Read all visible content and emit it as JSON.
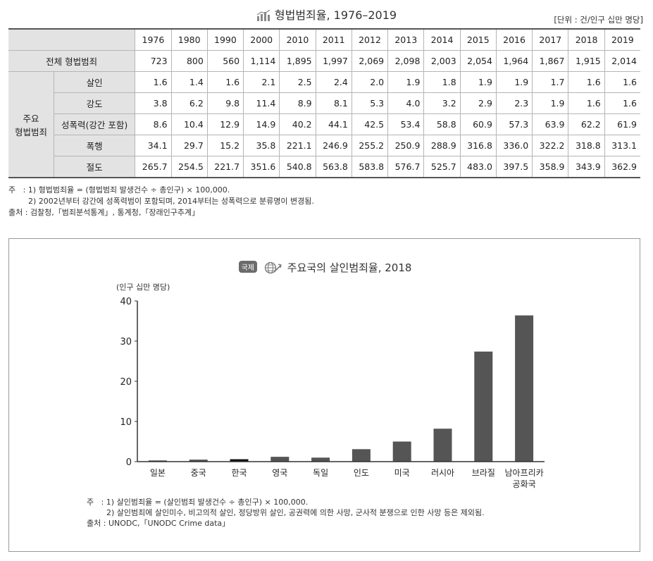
{
  "table_title": "형법범죄율, 1976–2019",
  "unit": "[단위 : 건/인구 십만 명당]",
  "years": [
    "1976",
    "1980",
    "1990",
    "2000",
    "2010",
    "2011",
    "2012",
    "2013",
    "2014",
    "2015",
    "2016",
    "2017",
    "2018",
    "2019"
  ],
  "total_row": {
    "label": "전체 형법범죄",
    "values": [
      "723",
      "800",
      "560",
      "1,114",
      "1,895",
      "1,997",
      "2,069",
      "2,098",
      "2,003",
      "2,054",
      "1,964",
      "1,867",
      "1,915",
      "2,014"
    ]
  },
  "group_label_1": "주요",
  "group_label_2": "형법범죄",
  "crime_rows": [
    {
      "label": "살인",
      "values": [
        "1.6",
        "1.4",
        "1.6",
        "2.1",
        "2.5",
        "2.4",
        "2.0",
        "1.9",
        "1.8",
        "1.9",
        "1.9",
        "1.7",
        "1.6",
        "1.6"
      ]
    },
    {
      "label": "강도",
      "values": [
        "3.8",
        "6.2",
        "9.8",
        "11.4",
        "8.9",
        "8.1",
        "5.3",
        "4.0",
        "3.2",
        "2.9",
        "2.3",
        "1.9",
        "1.6",
        "1.6"
      ]
    },
    {
      "label": "성폭력(강간 포함)",
      "values": [
        "8.6",
        "10.4",
        "12.9",
        "14.9",
        "40.2",
        "44.1",
        "42.5",
        "53.4",
        "58.8",
        "60.9",
        "57.3",
        "63.9",
        "62.2",
        "61.9"
      ]
    },
    {
      "label": "폭행",
      "values": [
        "34.1",
        "29.7",
        "15.2",
        "35.8",
        "221.1",
        "246.9",
        "255.2",
        "250.9",
        "288.9",
        "316.8",
        "336.0",
        "322.2",
        "318.8",
        "313.1"
      ]
    },
    {
      "label": "절도",
      "values": [
        "265.7",
        "254.5",
        "221.7",
        "351.6",
        "540.8",
        "563.8",
        "583.8",
        "576.7",
        "525.7",
        "483.0",
        "397.5",
        "358.9",
        "343.9",
        "362.9"
      ]
    }
  ],
  "table_notes": [
    "주   : 1) 형법범죄율 = (형법범죄 발생건수 ÷ 총인구) × 100,000.",
    "        2) 2002년부터 강간에 성폭력범이 포함되며, 2014부터는 성폭력으로 분류명이 변경됨.",
    "출처 : 검찰청,「범죄분석통계」, 통계청,「장래인구추계」"
  ],
  "chart_badge": "국제",
  "chart_data": {
    "type": "bar",
    "title": "주요국의 살인범죄율, 2018",
    "ylabel": "(인구 십만 명당)",
    "xlabel": "",
    "categories": [
      "일본",
      "중국",
      "한국",
      "영국",
      "독일",
      "인도",
      "미국",
      "러시아",
      "브라질",
      "남아프리카 공화국"
    ],
    "values": [
      0.3,
      0.5,
      0.6,
      1.2,
      1.0,
      3.1,
      5.0,
      8.2,
      27.4,
      36.4
    ],
    "highlight_index": 2,
    "ylim": [
      0,
      40
    ],
    "yticks": [
      0,
      10,
      20,
      30,
      40
    ],
    "grid": false,
    "legend": "none",
    "colors": {
      "bar": "#555555",
      "highlight": "#111111",
      "axis": "#333333"
    }
  },
  "chart_notes": [
    "주   : 1) 살인범죄율 = (살인범죄 발생건수 ÷ 총인구) × 100,000.",
    "        2) 살인범죄에 살인미수, 비고의적 살인, 정당방위 살인, 공권력에 의한 사망, 군사적 분쟁으로 인한 사망 등은 제외됨.",
    "출처 : UNODC,「UNODC Crime data」"
  ]
}
